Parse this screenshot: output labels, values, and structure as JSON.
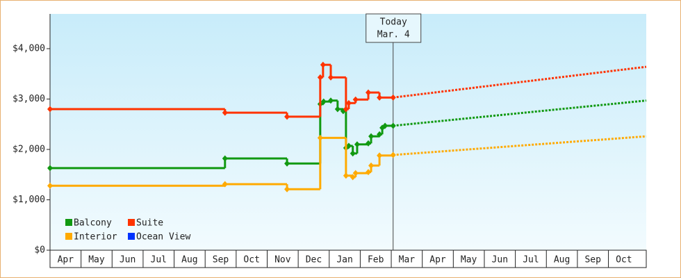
{
  "chart_data": {
    "type": "line",
    "step": true,
    "xlim": [
      0,
      19.22
    ],
    "xticks": [
      {
        "value": 0,
        "label": "Apr"
      },
      {
        "value": 1,
        "label": "May"
      },
      {
        "value": 2,
        "label": "Jun"
      },
      {
        "value": 3,
        "label": "Jul"
      },
      {
        "value": 4,
        "label": "Aug"
      },
      {
        "value": 5,
        "label": "Sep"
      },
      {
        "value": 6,
        "label": "Oct"
      },
      {
        "value": 7,
        "label": "Nov"
      },
      {
        "value": 8,
        "label": "Dec"
      },
      {
        "value": 9,
        "label": "Jan"
      },
      {
        "value": 10,
        "label": "Feb"
      },
      {
        "value": 11,
        "label": "Mar"
      },
      {
        "value": 12,
        "label": "Apr"
      },
      {
        "value": 13,
        "label": "May"
      },
      {
        "value": 14,
        "label": "Jun"
      },
      {
        "value": 15,
        "label": "Jul"
      },
      {
        "value": 16,
        "label": "Aug"
      },
      {
        "value": 17,
        "label": "Sep"
      },
      {
        "value": 18,
        "label": "Oct"
      }
    ],
    "ylim": [
      0,
      4690
    ],
    "yticks": [
      {
        "value": 0,
        "label": "$0"
      },
      {
        "value": 1000,
        "label": "$1,000"
      },
      {
        "value": 2000,
        "label": "$2,000"
      },
      {
        "value": 3000,
        "label": "$3,000"
      },
      {
        "value": 4000,
        "label": "$4,000"
      }
    ],
    "legend": "lower left",
    "annotation": {
      "x": 11.06,
      "lines": [
        "Today",
        "Mar. 4"
      ]
    },
    "series": [
      {
        "name": "Balcony",
        "color": "#119911",
        "x": [
          0,
          5.64,
          7.64,
          8.71,
          8.82,
          9.05,
          9.27,
          9.45,
          9.54,
          9.63,
          9.76,
          9.9,
          10.26,
          10.35,
          10.62,
          10.71,
          10.8,
          11.06
        ],
        "values": [
          1630,
          1820,
          1720,
          2900,
          2950,
          2970,
          2800,
          2760,
          2030,
          2070,
          1920,
          2100,
          2120,
          2260,
          2300,
          2430,
          2470,
          2470
        ],
        "forecast": {
          "x": [
            11.06,
            19.22
          ],
          "values": [
            2470,
            2970
          ]
        }
      },
      {
        "name": "Suite",
        "color": "#ff3300",
        "x": [
          0,
          5.64,
          7.64,
          8.71,
          8.8,
          9.05,
          9.54,
          9.63,
          9.85,
          10.26,
          10.62,
          11.06
        ],
        "values": [
          2800,
          2730,
          2650,
          3430,
          3680,
          3430,
          2800,
          2920,
          2990,
          3130,
          3030,
          3030
        ],
        "forecast": {
          "x": [
            11.06,
            19.22
          ],
          "values": [
            3030,
            3640
          ]
        }
      },
      {
        "name": "Interior",
        "color": "#ffaa00",
        "x": [
          0,
          5.64,
          7.64,
          8.71,
          9.54,
          9.76,
          9.85,
          10.26,
          10.35,
          10.62,
          11.06
        ],
        "values": [
          1280,
          1310,
          1210,
          2230,
          1480,
          1450,
          1530,
          1550,
          1680,
          1880,
          1890
        ],
        "forecast": {
          "x": [
            11.06,
            19.22
          ],
          "values": [
            1890,
            2260
          ]
        }
      },
      {
        "name": "Ocean View",
        "color": "#0033ff",
        "x": [],
        "values": []
      }
    ]
  }
}
